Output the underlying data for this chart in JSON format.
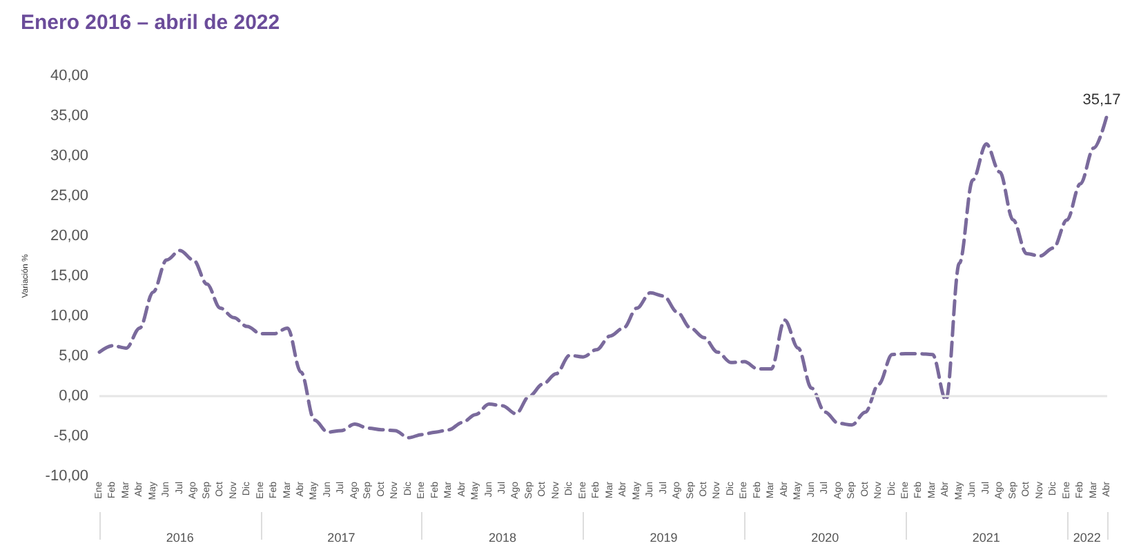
{
  "chart_data": {
    "type": "line",
    "title": "Enero 2016 – abril de 2022",
    "ylabel": "Variación %",
    "categories": [
      "Ene",
      "Feb",
      "Mar",
      "Abr",
      "May",
      "Jun",
      "Jul",
      "Ago",
      "Sep",
      "Oct",
      "Nov",
      "Dic",
      "Ene",
      "Feb",
      "Mar",
      "Abr",
      "May",
      "Jun",
      "Jul",
      "Ago",
      "Sep",
      "Oct",
      "Nov",
      "Dic",
      "Ene",
      "Feb",
      "Mar",
      "Abr",
      "May",
      "Jun",
      "Jul",
      "Ago",
      "Sep",
      "Oct",
      "Nov",
      "Dic",
      "Ene",
      "Feb",
      "Mar",
      "Abr",
      "May",
      "Jun",
      "Jul",
      "Ago",
      "Sep",
      "Oct",
      "Nov",
      "Dic",
      "Ene",
      "Feb",
      "Mar",
      "Abr",
      "May",
      "Jun",
      "Jul",
      "Ago",
      "Sep",
      "Oct",
      "Nov",
      "Dic",
      "Ene",
      "Feb",
      "Mar",
      "Abr",
      "May",
      "Jun",
      "Jul",
      "Ago",
      "Sep",
      "Oct",
      "Nov",
      "Dic",
      "Ene",
      "Feb",
      "Mar",
      "Abr"
    ],
    "series": [
      {
        "color": "#7a6a9c",
        "values": [
          5.5,
          6.3,
          6.0,
          8.5,
          13,
          17,
          18.2,
          17,
          14,
          11,
          9.8,
          8.7,
          7.8,
          7.8,
          8.5,
          3,
          -3,
          -4.5,
          -4.3,
          -3.5,
          -4.0,
          -4.2,
          -4.3,
          -5.2,
          -4.8,
          -4.5,
          -4.2,
          -3.3,
          -2.3,
          -1.0,
          -1.2,
          -2.2,
          0,
          1.5,
          2.8,
          5.1,
          4.9,
          5.8,
          7.5,
          8.5,
          11,
          12.9,
          12.5,
          10.5,
          8.5,
          7.3,
          5.5,
          4.2,
          4.3,
          3.4,
          3.4,
          9.5,
          6,
          1,
          -2,
          -3.4,
          -3.6,
          -2,
          1.5,
          5.2,
          5.3,
          5.3,
          5.2,
          -0.5,
          16.6,
          27,
          31.5,
          28,
          22,
          17.8,
          17.5,
          18.5,
          22,
          26.5,
          31,
          35.17
        ],
        "value_labels": [
          null,
          null,
          null,
          null,
          null,
          null,
          null,
          null,
          null,
          null,
          null,
          null,
          null,
          null,
          null,
          null,
          null,
          null,
          null,
          null,
          null,
          null,
          null,
          null,
          null,
          null,
          null,
          null,
          null,
          null,
          null,
          null,
          null,
          null,
          null,
          null,
          null,
          null,
          null,
          null,
          null,
          null,
          null,
          null,
          null,
          null,
          null,
          null,
          null,
          null,
          null,
          null,
          null,
          null,
          null,
          null,
          null,
          null,
          null,
          null,
          null,
          null,
          null,
          null,
          null,
          null,
          null,
          null,
          null,
          null,
          null,
          null,
          null,
          null,
          null,
          "35,17"
        ]
      }
    ],
    "ylim": [
      -10,
      40
    ],
    "yticks": [
      {
        "value": -10,
        "label": "-10,00"
      },
      {
        "value": -5,
        "label": "-5,00"
      },
      {
        "value": 0,
        "label": "0,00"
      },
      {
        "value": 5,
        "label": "5,00"
      },
      {
        "value": 10,
        "label": "10,00"
      },
      {
        "value": 15,
        "label": "15,00"
      },
      {
        "value": 20,
        "label": "20,00"
      },
      {
        "value": 25,
        "label": "25,00"
      },
      {
        "value": 30,
        "label": "30,00"
      },
      {
        "value": 35,
        "label": "35,00"
      },
      {
        "value": 40,
        "label": "40,00"
      }
    ],
    "ref_lines": [
      {
        "axis": "y",
        "value": 0,
        "color": "#e6e6e6"
      }
    ],
    "annotations": [
      "2016",
      "2017",
      "2018",
      "2019",
      "2020",
      "2021",
      "2022"
    ],
    "line_style": "dashed",
    "marker": "none"
  }
}
